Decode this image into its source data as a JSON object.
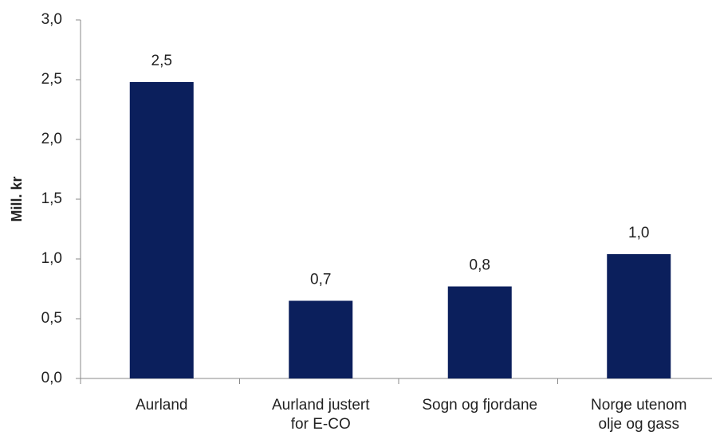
{
  "chart_data": {
    "type": "bar",
    "y_label": "Mill. kr",
    "categories": [
      "Aurland",
      "Aurland justert\nfor E-CO",
      "Sogn og fjordane",
      "Norge utenom\nolje og gass"
    ],
    "values": [
      2.48,
      0.65,
      0.77,
      1.04
    ],
    "value_labels": [
      "2,5",
      "0,7",
      "0,8",
      "1,0"
    ],
    "color": "#0b1f5c",
    "ylim": [
      0,
      3
    ],
    "yticks": [
      {
        "value": 0,
        "label": "0,0"
      },
      {
        "value": 0.5,
        "label": "0,5"
      },
      {
        "value": 1,
        "label": "1,0"
      },
      {
        "value": 1.5,
        "label": "1,5"
      },
      {
        "value": 2,
        "label": "2,0"
      },
      {
        "value": 2.5,
        "label": "2,5"
      },
      {
        "value": 3,
        "label": "3,0"
      }
    ]
  }
}
